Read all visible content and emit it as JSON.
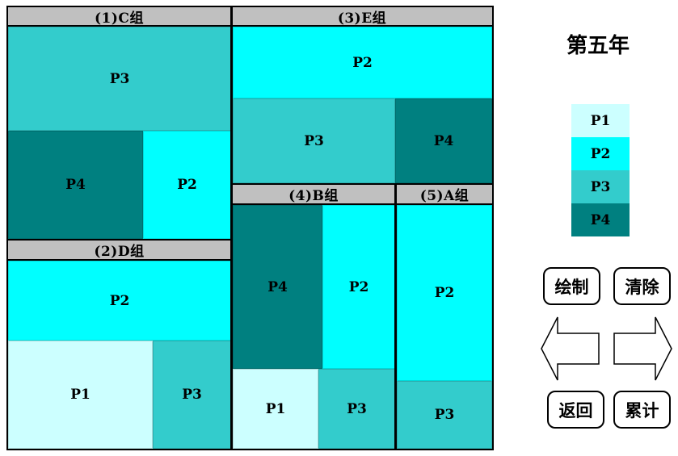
{
  "groups": {
    "c": {
      "title": "(1)C组",
      "cells": {
        "top": "P3",
        "bl": "P4",
        "br": "P2"
      }
    },
    "d": {
      "title": "(2)D组",
      "cells": {
        "top": "P2",
        "bl": "P1",
        "br": "P3"
      }
    },
    "e": {
      "title": "(3)E组",
      "cells": {
        "top": "P2",
        "bl": "P3",
        "br": "P4"
      }
    },
    "b": {
      "title": "(4)B组",
      "cells": {
        "tl": "P4",
        "tr": "P2",
        "bl": "P1",
        "br": "P3"
      }
    },
    "a": {
      "title": "(5)A组",
      "cells": {
        "top": "P2",
        "bottom": "P3"
      }
    }
  },
  "year_label": "第五年",
  "legend": [
    {
      "label": "P1",
      "color": "#ccffff"
    },
    {
      "label": "P2",
      "color": "#00ffff"
    },
    {
      "label": "P3",
      "color": "#33cccc"
    },
    {
      "label": "P4",
      "color": "#008080"
    }
  ],
  "buttons": {
    "draw": "绘制",
    "clear": "清除",
    "back": "返回",
    "cumulative": "累计"
  },
  "arrows": {
    "prev": "left-arrow-icon",
    "next": "right-arrow-icon"
  }
}
